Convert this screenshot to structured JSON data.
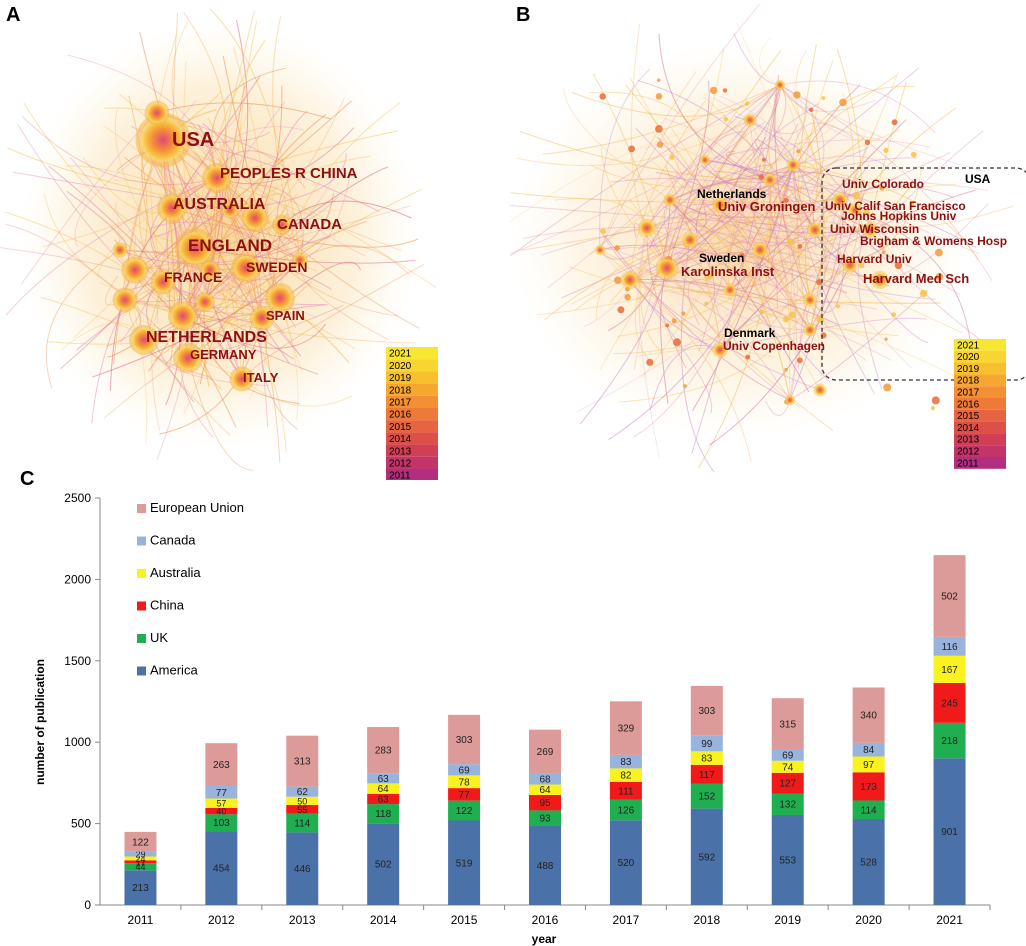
{
  "panels": {
    "a_label": "A",
    "b_label": "B",
    "c_label": "C"
  },
  "network_a": {
    "country_labels": [
      "USA",
      "PEOPLES R CHINA",
      "AUSTRALIA",
      "CANADA",
      "ENGLAND",
      "SWEDEN",
      "FRANCE",
      "SPAIN",
      "NETHERLANDS",
      "GERMANY",
      "ITALY"
    ],
    "year_legend": [
      "2021",
      "2020",
      "2019",
      "2018",
      "2017",
      "2016",
      "2015",
      "2014",
      "2013",
      "2012",
      "2011"
    ]
  },
  "network_b": {
    "country_labels": [
      "Netherlands",
      "Sweden",
      "Denmark",
      "USA"
    ],
    "institution_labels": [
      "Univ Groningen",
      "Karolinska Inst",
      "Univ Copenhagen",
      "Univ Colorado",
      "Univ Calif San Francisco",
      "Johns Hopkins Univ",
      "Univ Wisconsin",
      "Brigham & Womens Hosp",
      "Harvard Univ",
      "Harvard Med Sch"
    ],
    "year_legend": [
      "2021",
      "2020",
      "2019",
      "2018",
      "2017",
      "2016",
      "2015",
      "2014",
      "2013",
      "2012",
      "2011"
    ]
  },
  "legend_colors": {
    "year_gradient": [
      "#f7e733",
      "#f8d530",
      "#f8bf2f",
      "#f6a72f",
      "#f39033",
      "#ee7a39",
      "#e76440",
      "#dd5048",
      "#d13f56",
      "#c33468",
      "#b12e80"
    ]
  },
  "chart_data": {
    "type": "bar",
    "stacked": true,
    "title": "",
    "xlabel": "year",
    "ylabel": "number of publication",
    "ylim": [
      0,
      2500
    ],
    "yticks": [
      0,
      500,
      1000,
      1500,
      2000,
      2500
    ],
    "categories": [
      "2011",
      "2012",
      "2013",
      "2014",
      "2015",
      "2016",
      "2017",
      "2018",
      "2019",
      "2020",
      "2021"
    ],
    "series": [
      {
        "name": "America",
        "color": "#4a72a8",
        "values": [
          213,
          454,
          446,
          502,
          519,
          488,
          520,
          592,
          553,
          528,
          901
        ]
      },
      {
        "name": "UK",
        "color": "#1fae50",
        "values": [
          44,
          103,
          114,
          118,
          122,
          93,
          126,
          152,
          132,
          114,
          218
        ]
      },
      {
        "name": "China",
        "color": "#f11a1a",
        "values": [
          17,
          40,
          55,
          63,
          77,
          95,
          111,
          117,
          127,
          173,
          245
        ]
      },
      {
        "name": "Australia",
        "color": "#faf21e",
        "values": [
          24,
          57,
          50,
          64,
          78,
          64,
          82,
          83,
          74,
          97,
          167
        ]
      },
      {
        "name": "Canada",
        "color": "#98b4dd",
        "values": [
          29,
          77,
          62,
          63,
          69,
          68,
          83,
          99,
          69,
          84,
          116
        ]
      },
      {
        "name": "European Union",
        "color": "#dc9a98",
        "values": [
          122,
          263,
          313,
          283,
          303,
          269,
          329,
          303,
          315,
          340,
          502
        ]
      }
    ],
    "legend_order": [
      "European Union",
      "Canada",
      "Australia",
      "China",
      "UK",
      "America"
    ]
  }
}
